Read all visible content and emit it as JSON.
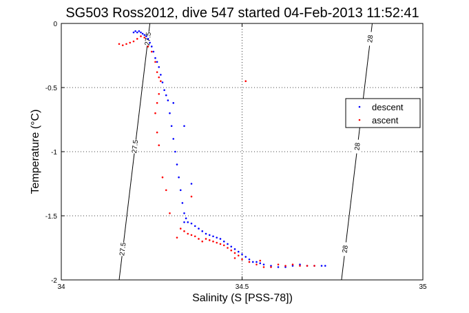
{
  "chart_data": {
    "type": "scatter",
    "title": "SG503 Ross2012, dive 547 started 04-Feb-2013 11:52:41",
    "xlabel": "Salinity (S [PSS-78])",
    "ylabel": "Temperature (°C)",
    "xlim": [
      34,
      35
    ],
    "ylim": [
      -2,
      0
    ],
    "xticks": [
      "34",
      "34.5",
      "35"
    ],
    "yticks": [
      "-2",
      "-1.5",
      "-1",
      "-0.5",
      "0"
    ],
    "grid": true,
    "legend_position": "right",
    "isopycnals": [
      {
        "label": "27.5",
        "points": [
          [
            34.16,
            -2.0
          ],
          [
            34.245,
            0.0
          ]
        ]
      },
      {
        "label": "28",
        "points": [
          [
            34.775,
            -2.0
          ],
          [
            34.86,
            0.0
          ]
        ]
      }
    ],
    "series": [
      {
        "name": "descent",
        "color": "#0000ff",
        "points": [
          [
            34.2,
            -0.07
          ],
          [
            34.205,
            -0.06
          ],
          [
            34.21,
            -0.07
          ],
          [
            34.215,
            -0.06
          ],
          [
            34.22,
            -0.07
          ],
          [
            34.225,
            -0.08
          ],
          [
            34.23,
            -0.09
          ],
          [
            34.235,
            -0.1
          ],
          [
            34.24,
            -0.12
          ],
          [
            34.245,
            -0.15
          ],
          [
            34.25,
            -0.18
          ],
          [
            34.255,
            -0.22
          ],
          [
            34.26,
            -0.27
          ],
          [
            34.265,
            -0.3
          ],
          [
            34.27,
            -0.34
          ],
          [
            34.275,
            -0.4
          ],
          [
            34.28,
            -0.46
          ],
          [
            34.285,
            -0.52
          ],
          [
            34.29,
            -0.56
          ],
          [
            34.295,
            -0.6
          ],
          [
            34.3,
            -0.7
          ],
          [
            34.305,
            -0.8
          ],
          [
            34.31,
            -0.9
          ],
          [
            34.315,
            -1.0
          ],
          [
            34.32,
            -1.1
          ],
          [
            34.325,
            -1.2
          ],
          [
            34.33,
            -1.3
          ],
          [
            34.335,
            -1.4
          ],
          [
            34.34,
            -1.48
          ],
          [
            34.345,
            -1.52
          ],
          [
            34.35,
            -1.55
          ],
          [
            34.36,
            -1.56
          ],
          [
            34.37,
            -1.58
          ],
          [
            34.38,
            -1.6
          ],
          [
            34.39,
            -1.62
          ],
          [
            34.4,
            -1.64
          ],
          [
            34.41,
            -1.65
          ],
          [
            34.42,
            -1.66
          ],
          [
            34.43,
            -1.67
          ],
          [
            34.44,
            -1.68
          ],
          [
            34.45,
            -1.7
          ],
          [
            34.46,
            -1.72
          ],
          [
            34.47,
            -1.74
          ],
          [
            34.48,
            -1.76
          ],
          [
            34.49,
            -1.78
          ],
          [
            34.5,
            -1.8
          ],
          [
            34.51,
            -1.82
          ],
          [
            34.52,
            -1.84
          ],
          [
            34.53,
            -1.86
          ],
          [
            34.54,
            -1.86
          ],
          [
            34.55,
            -1.87
          ],
          [
            34.56,
            -1.88
          ],
          [
            34.58,
            -1.89
          ],
          [
            34.6,
            -1.9
          ],
          [
            34.62,
            -1.9
          ],
          [
            34.64,
            -1.89
          ],
          [
            34.66,
            -1.88
          ],
          [
            34.68,
            -1.89
          ],
          [
            34.7,
            -1.89
          ],
          [
            34.72,
            -1.89
          ],
          [
            34.73,
            -1.89
          ],
          [
            34.31,
            -0.62
          ],
          [
            34.34,
            -0.8
          ],
          [
            34.36,
            -1.25
          ],
          [
            34.34,
            -1.55
          ]
        ]
      },
      {
        "name": "ascent",
        "color": "#ff0000",
        "points": [
          [
            34.16,
            -0.16
          ],
          [
            34.17,
            -0.17
          ],
          [
            34.18,
            -0.16
          ],
          [
            34.19,
            -0.15
          ],
          [
            34.2,
            -0.14
          ],
          [
            34.21,
            -0.12
          ],
          [
            34.22,
            -0.1
          ],
          [
            34.23,
            -0.11
          ],
          [
            34.24,
            -0.18
          ],
          [
            34.25,
            -0.22
          ],
          [
            34.26,
            -0.3
          ],
          [
            34.265,
            -0.38
          ],
          [
            34.27,
            -0.42
          ],
          [
            34.275,
            -0.45
          ],
          [
            34.27,
            -0.55
          ],
          [
            34.265,
            -0.62
          ],
          [
            34.26,
            -0.7
          ],
          [
            34.265,
            -0.85
          ],
          [
            34.27,
            -0.95
          ],
          [
            34.28,
            -1.2
          ],
          [
            34.29,
            -1.3
          ],
          [
            34.3,
            -1.48
          ],
          [
            34.33,
            -1.6
          ],
          [
            34.34,
            -1.62
          ],
          [
            34.35,
            -1.64
          ],
          [
            34.36,
            -1.65
          ],
          [
            34.37,
            -1.66
          ],
          [
            34.38,
            -1.68
          ],
          [
            34.39,
            -1.7
          ],
          [
            34.4,
            -1.68
          ],
          [
            34.41,
            -1.69
          ],
          [
            34.42,
            -1.7
          ],
          [
            34.43,
            -1.71
          ],
          [
            34.44,
            -1.72
          ],
          [
            34.45,
            -1.73
          ],
          [
            34.46,
            -1.75
          ],
          [
            34.47,
            -1.77
          ],
          [
            34.48,
            -1.79
          ],
          [
            34.49,
            -1.81
          ],
          [
            34.5,
            -1.84
          ],
          [
            34.52,
            -1.86
          ],
          [
            34.54,
            -1.88
          ],
          [
            34.56,
            -1.9
          ],
          [
            34.58,
            -1.9
          ],
          [
            34.6,
            -1.88
          ],
          [
            34.62,
            -1.89
          ],
          [
            34.64,
            -1.88
          ],
          [
            34.66,
            -1.89
          ],
          [
            34.68,
            -1.89
          ],
          [
            34.7,
            -1.89
          ],
          [
            34.51,
            -0.45
          ],
          [
            34.36,
            -1.35
          ],
          [
            34.32,
            -1.67
          ],
          [
            34.48,
            -1.83
          ],
          [
            34.55,
            -1.85
          ]
        ]
      }
    ]
  }
}
